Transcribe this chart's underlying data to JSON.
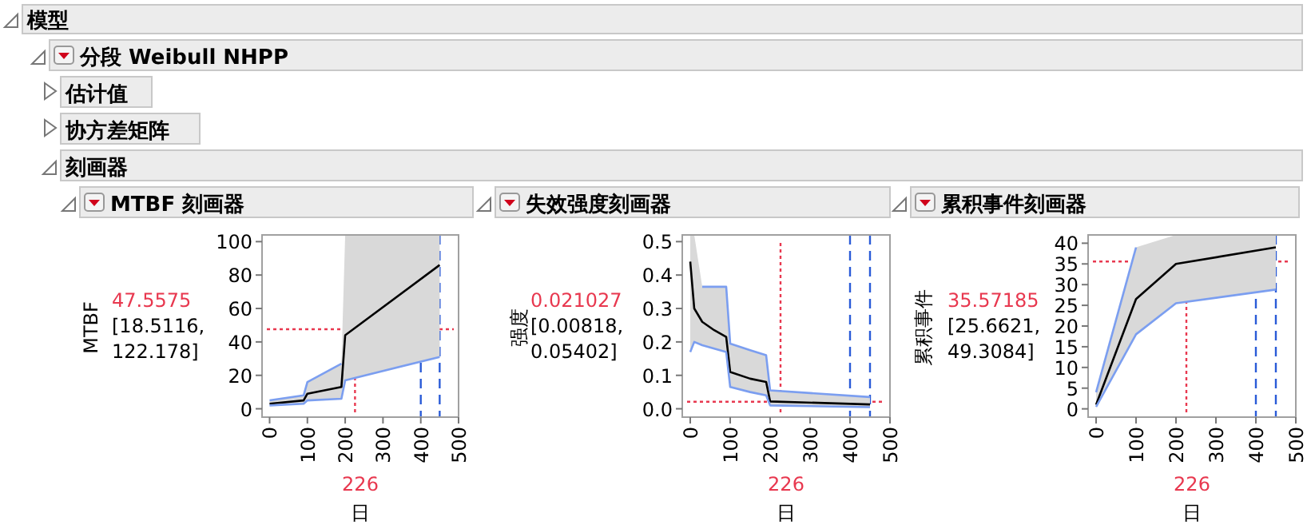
{
  "chart_data": [
    {
      "type": "line",
      "title": "MTBF 刻画器",
      "ylabel": "MTBF",
      "xlabel": "日",
      "xlim": [
        -20,
        500
      ],
      "ylim": [
        -5,
        104
      ],
      "xticks": [
        0,
        100,
        200,
        300,
        400,
        500
      ],
      "yticks": [
        0,
        20,
        40,
        60,
        80,
        100
      ],
      "annotations": [
        "模型",
        "分段 Weibull NHPP",
        "估计值",
        "协方差矩阵",
        "刻画器",
        "[18.5116, 122.178]"
      ],
      "ref_lines": [
        {
          "axis": "x",
          "value": 226,
          "label": "226",
          "color": "#e8384f",
          "line_style": "dotted"
        },
        {
          "axis": "y",
          "value": 47.5575,
          "label": "47.5575",
          "color": "#e8384f",
          "line_style": "dotted"
        },
        {
          "axis": "x",
          "value": 400,
          "color": "#2a5bd7",
          "line_style": "dashed"
        },
        {
          "axis": "x",
          "value": 450,
          "color": "#2a5bd7",
          "line_style": "dashed"
        }
      ],
      "series": [
        {
          "color": "#000000",
          "x": [
            0,
            90,
            100,
            190,
            200,
            450
          ],
          "values": [
            3,
            5,
            9,
            13,
            44,
            86
          ],
          "lower": [
            2,
            3,
            5,
            6,
            17,
            31
          ],
          "upper": [
            5,
            8,
            16,
            27,
            104,
            104
          ]
        },
        {
          "color": "#7b9ef0",
          "x": [
            0,
            90,
            100,
            190,
            200,
            450
          ],
          "values": [
            2,
            3,
            5,
            6,
            17,
            31
          ]
        },
        {
          "color": "#7b9ef0",
          "x": [
            0,
            90,
            100,
            190
          ],
          "values": [
            5,
            8,
            16,
            27
          ]
        }
      ]
    },
    {
      "type": "line",
      "title": "失效强度刻画器",
      "ylabel": "强度",
      "xlabel": "日",
      "xlim": [
        -20,
        500
      ],
      "ylim": [
        -0.025,
        0.52
      ],
      "xticks": [
        0,
        100,
        200,
        300,
        400,
        500
      ],
      "yticks": [
        {
          "value": 0,
          "label": "0.0"
        },
        0.1,
        0.2,
        0.3,
        0.4,
        0.5
      ],
      "annotations": [
        "[0.00818, 0.05402]"
      ],
      "ref_lines": [
        {
          "axis": "x",
          "value": 226,
          "label": "226",
          "color": "#e8384f",
          "line_style": "dotted"
        },
        {
          "axis": "y",
          "value": 0.021027,
          "label": "0.021027",
          "color": "#e8384f",
          "line_style": "dotted"
        },
        {
          "axis": "x",
          "value": 400,
          "color": "#2a5bd7",
          "line_style": "dashed"
        },
        {
          "axis": "x",
          "value": 450,
          "color": "#2a5bd7",
          "line_style": "dashed"
        }
      ],
      "series": [
        {
          "color": "#000000",
          "x": [
            0,
            10,
            30,
            60,
            90,
            100,
            150,
            190,
            200,
            450
          ],
          "values": [
            0.44,
            0.3,
            0.26,
            0.235,
            0.215,
            0.11,
            0.09,
            0.08,
            0.022,
            0.013
          ],
          "lower": [
            0.17,
            0.2,
            0.19,
            0.18,
            0.17,
            0.065,
            0.05,
            0.04,
            0.01,
            0.005
          ],
          "upper": [
            0.52,
            0.52,
            0.365,
            0.365,
            0.365,
            0.195,
            0.175,
            0.16,
            0.055,
            0.035
          ]
        },
        {
          "color": "#7b9ef0",
          "x": [
            0,
            10,
            30,
            60,
            90,
            100,
            150,
            190,
            200,
            450
          ],
          "values": [
            0.17,
            0.2,
            0.19,
            0.18,
            0.17,
            0.065,
            0.05,
            0.04,
            0.01,
            0.005
          ]
        },
        {
          "color": "#7b9ef0",
          "x": [
            30,
            60,
            90,
            100,
            150,
            190,
            200,
            450
          ],
          "values": [
            0.365,
            0.365,
            0.365,
            0.195,
            0.175,
            0.16,
            0.055,
            0.035
          ]
        }
      ]
    },
    {
      "type": "line",
      "title": "累积事件刻画器",
      "ylabel": "累积事件",
      "xlabel": "日",
      "xlim": [
        -20,
        500
      ],
      "ylim": [
        -2,
        42
      ],
      "xticks": [
        0,
        100,
        200,
        300,
        400,
        500
      ],
      "yticks": [
        0,
        5,
        10,
        15,
        20,
        25,
        30,
        35,
        40
      ],
      "annotations": [
        "[25.6621, 49.3084]"
      ],
      "ref_lines": [
        {
          "axis": "x",
          "value": 226,
          "label": "226",
          "color": "#e8384f",
          "line_style": "dotted"
        },
        {
          "axis": "y",
          "value": 35.57185,
          "label": "35.57185",
          "color": "#e8384f",
          "line_style": "dotted"
        },
        {
          "axis": "x",
          "value": 400,
          "color": "#2a5bd7",
          "line_style": "dashed"
        },
        {
          "axis": "x",
          "value": 450,
          "color": "#2a5bd7",
          "line_style": "dashed"
        }
      ],
      "series": [
        {
          "color": "#000000",
          "x": [
            0,
            100,
            200,
            450
          ],
          "values": [
            1,
            26.5,
            35,
            39
          ],
          "lower": [
            0.5,
            18,
            25.5,
            28.8
          ],
          "upper": [
            4,
            39,
            42,
            42
          ]
        },
        {
          "color": "#7b9ef0",
          "x": [
            0,
            100,
            200,
            450
          ],
          "values": [
            0.5,
            18,
            25.5,
            28.8
          ]
        },
        {
          "color": "#7b9ef0",
          "x": [
            0,
            100
          ],
          "values": [
            4,
            39
          ]
        }
      ]
    }
  ]
}
